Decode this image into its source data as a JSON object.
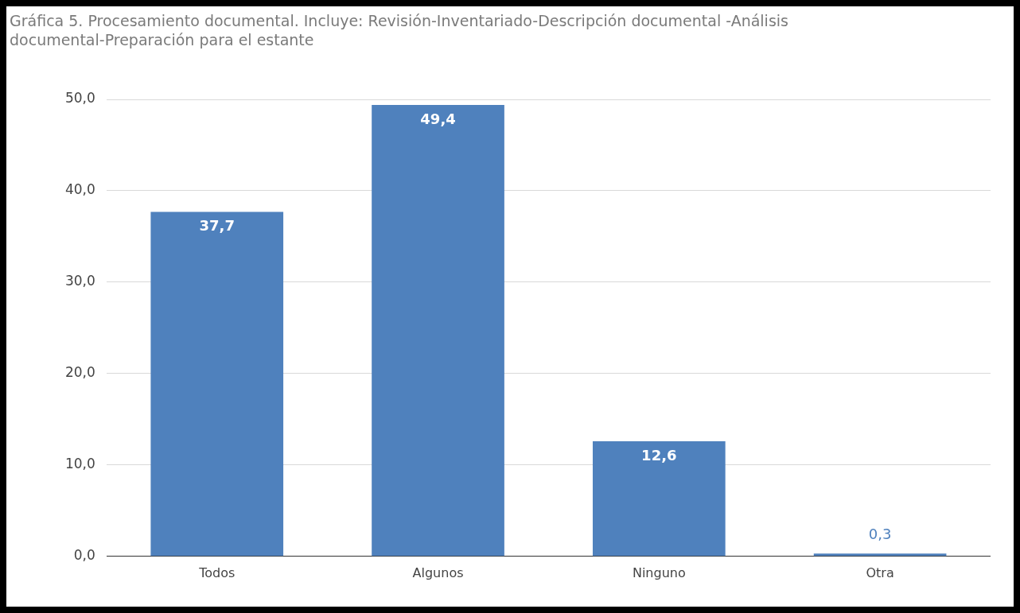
{
  "chart_data": {
    "type": "bar",
    "title": "Gráfica 5. Procesamiento documental. Incluye: Revisión-Inventariado-Descripción documental -Análisis documental-Preparación para el estante",
    "categories": [
      "Todos",
      "Algunos",
      "Ninguno",
      "Otra"
    ],
    "values": [
      37.7,
      49.4,
      12.6,
      0.3
    ],
    "value_labels": [
      "37,7",
      "49,4",
      "12,6",
      "0,3"
    ],
    "color": "#4f81bd",
    "ylim": [
      0,
      50
    ],
    "yticks": [
      {
        "value": 0,
        "label": "0,0"
      },
      {
        "value": 10,
        "label": "10,0"
      },
      {
        "value": 20,
        "label": "20,0"
      },
      {
        "value": 30,
        "label": "30,0"
      },
      {
        "value": 40,
        "label": "40,0"
      },
      {
        "value": 50,
        "label": "50,0"
      }
    ],
    "grid": "y",
    "legend": false
  }
}
